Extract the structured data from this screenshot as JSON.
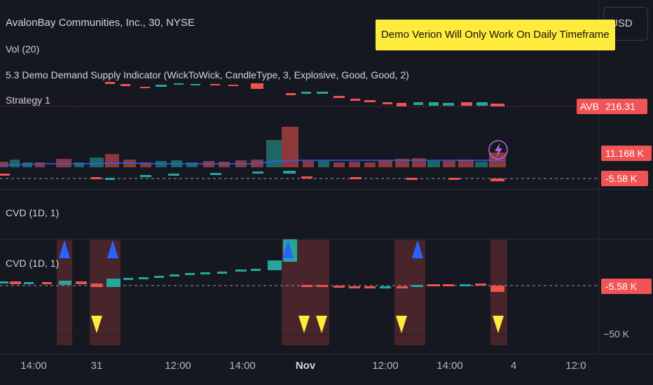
{
  "header": {
    "symbol": "AvalonBay Communities, Inc., 30, NYSE",
    "vol": "Vol (20)",
    "indicator": "5.3 Demo Demand Supply Indicator (WickToWick, CandleType, 3, Explosive, Good, Good, 2)",
    "strategy": "Strategy 1",
    "currency": "USD"
  },
  "notice": "Demo Verion Will Only Work On Daily Timeframe",
  "price": {
    "ticker_tag": "AVB",
    "last_price": "216.31",
    "volume_value": "11.168 K",
    "cvd_value": "-5.58 K"
  },
  "panes": {
    "cvd_middle": "CVD (1D, 1)",
    "cvd_bottom": "CVD (1D, 1)",
    "cvd_bottom_value": "-5.58 K",
    "cvd_axis_tick": "−50 K"
  },
  "time_axis": [
    "14:00",
    "31",
    "12:00",
    "14:00",
    "Nov",
    "12:00",
    "14:00",
    "4",
    "12:0"
  ],
  "colors": {
    "up": "#26a69a",
    "down": "#ef5350",
    "volume_ma": "#2962ff",
    "signal_up": "#2962ff",
    "signal_down": "#ffeb3b",
    "notice_bg": "#ffeb3b",
    "zone": "#5a2a2e"
  },
  "icons": {
    "lightning": "lightning-icon",
    "triangle_up": "triangle-up-icon",
    "triangle_down": "triangle-down-icon"
  }
}
